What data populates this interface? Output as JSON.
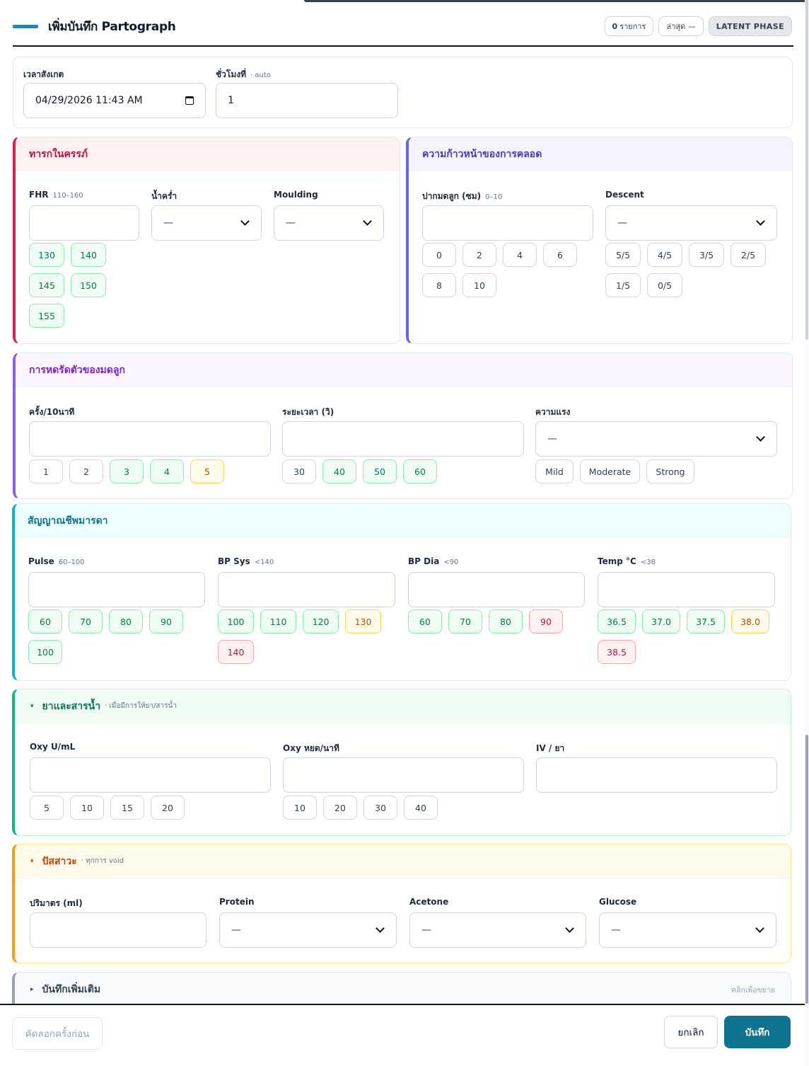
{
  "header": {
    "title": "เพิ่มบันทึก Partograph",
    "count_value": "0",
    "count_unit": "รายการ",
    "latest": "ล่าสุด —",
    "phase": "LATENT PHASE"
  },
  "observe": {
    "time_label": "เวลาสังเกต",
    "time_value": "04/29/2026 11:43 AM",
    "hour_label": "ชั่วโมงที่",
    "hour_auto": "· auto",
    "hour_value": "1"
  },
  "fetal": {
    "title": "ทารกในครรภ์",
    "fhr_label": "FHR",
    "fhr_range": "110–160",
    "fhr_chips": [
      "130",
      "140",
      "145",
      "150",
      "155"
    ],
    "amniotic_label": "น้ำคร่ำ",
    "amniotic_value": "—",
    "moulding_label": "Moulding",
    "moulding_value": "—"
  },
  "labor": {
    "title": "ความก้าวหน้าของการคลอด",
    "cervix_label": "ปากมดลูก (ซม)",
    "cervix_range": "0–10",
    "cervix_chips": [
      "0",
      "2",
      "4",
      "6",
      "8",
      "10"
    ],
    "descent_label": "Descent",
    "descent_value": "—",
    "descent_chips": [
      "5/5",
      "4/5",
      "3/5",
      "2/5",
      "1/5",
      "0/5"
    ]
  },
  "contraction": {
    "title": "การหดรัดตัวของมดลูก",
    "freq_label": "ครั้ง/10นาที",
    "freq_chips": [
      "1",
      "2",
      "3",
      "4",
      "5"
    ],
    "dur_label": "ระยะเวลา (วิ)",
    "dur_chips": [
      "30",
      "40",
      "50",
      "60"
    ],
    "strength_label": "ความแรง",
    "strength_value": "—",
    "strength_chips": [
      "Mild",
      "Moderate",
      "Strong"
    ]
  },
  "vitals": {
    "title": "สัญญาณชีพมารดา",
    "pulse_label": "Pulse",
    "pulse_range": "60–100",
    "pulse_chips": [
      "60",
      "70",
      "80",
      "90",
      "100"
    ],
    "sys_label": "BP Sys",
    "sys_range": "<140",
    "sys_chips": [
      "100",
      "110",
      "120",
      "130",
      "140"
    ],
    "dia_label": "BP Dia",
    "dia_range": "<90",
    "dia_chips": [
      "60",
      "70",
      "80",
      "90"
    ],
    "temp_label": "Temp °C",
    "temp_range": "<38",
    "temp_chips": [
      "36.5",
      "37.0",
      "37.5",
      "38.0",
      "38.5"
    ]
  },
  "drugs": {
    "title": "ยาและสารน้ำ",
    "caret": "▾",
    "subtitle": "· เมื่อมีการให้ยา/สารน้ำ",
    "oxy_label": "Oxy U/mL",
    "oxy_chips": [
      "5",
      "10",
      "15",
      "20"
    ],
    "drop_label": "Oxy หยด/นาที",
    "drop_chips": [
      "10",
      "20",
      "30",
      "40"
    ],
    "iv_label": "IV / ยา"
  },
  "urine": {
    "title": "ปัสสาวะ",
    "caret": "▾",
    "subtitle": "· ทุกการ void",
    "vol_label": "ปริมาตร (ml)",
    "protein_label": "Protein",
    "protein_value": "—",
    "acetone_label": "Acetone",
    "acetone_value": "—",
    "glucose_label": "Glucose",
    "glucose_value": "—"
  },
  "notes": {
    "title": "บันทึกเพิ่มเติม",
    "caret": "▸",
    "hint": "คลิกเพื่อขยาย"
  },
  "footer": {
    "copy": "คัดลอกครั้งก่อน",
    "cancel": "ยกเลิก",
    "save": "บันทึก"
  },
  "colors": {
    "fetal": "#e11d48",
    "labor": "#6366f1",
    "contraction": "#8b5cf6",
    "vitals": "#06b6d4",
    "drugs": "#10b981",
    "urine": "#f59e0b",
    "notes": "#94a3b8",
    "save": "#0e7490"
  },
  "icons": {
    "calendar": "calendar-icon"
  }
}
